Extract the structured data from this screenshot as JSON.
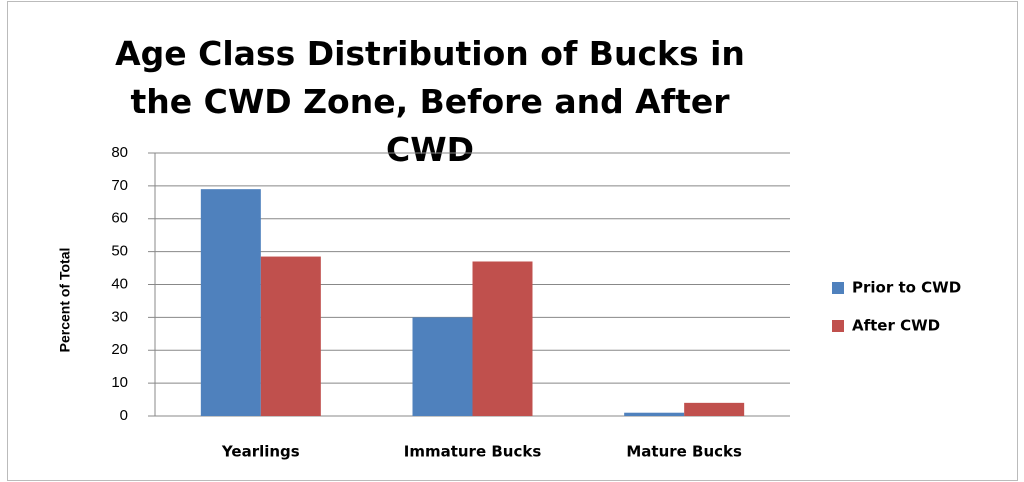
{
  "chart_data": {
    "type": "bar",
    "title": "Age Class Distribution of Bucks in the CWD Zone, Before and After CWD",
    "y_label": "Percent of Total",
    "categories": [
      "Yearlings",
      "Immature Bucks",
      "Mature Bucks"
    ],
    "series": [
      {
        "name": "Prior to CWD",
        "color": "#4f81bd",
        "values": [
          69,
          30,
          1
        ]
      },
      {
        "name": "After CWD",
        "color": "#c0504d",
        "values": [
          48.5,
          47,
          4
        ]
      }
    ],
    "ylim": [
      0,
      80
    ],
    "yticks": [
      0,
      10,
      20,
      30,
      40,
      50,
      60,
      70,
      80
    ],
    "grid": true,
    "legend": "right"
  }
}
